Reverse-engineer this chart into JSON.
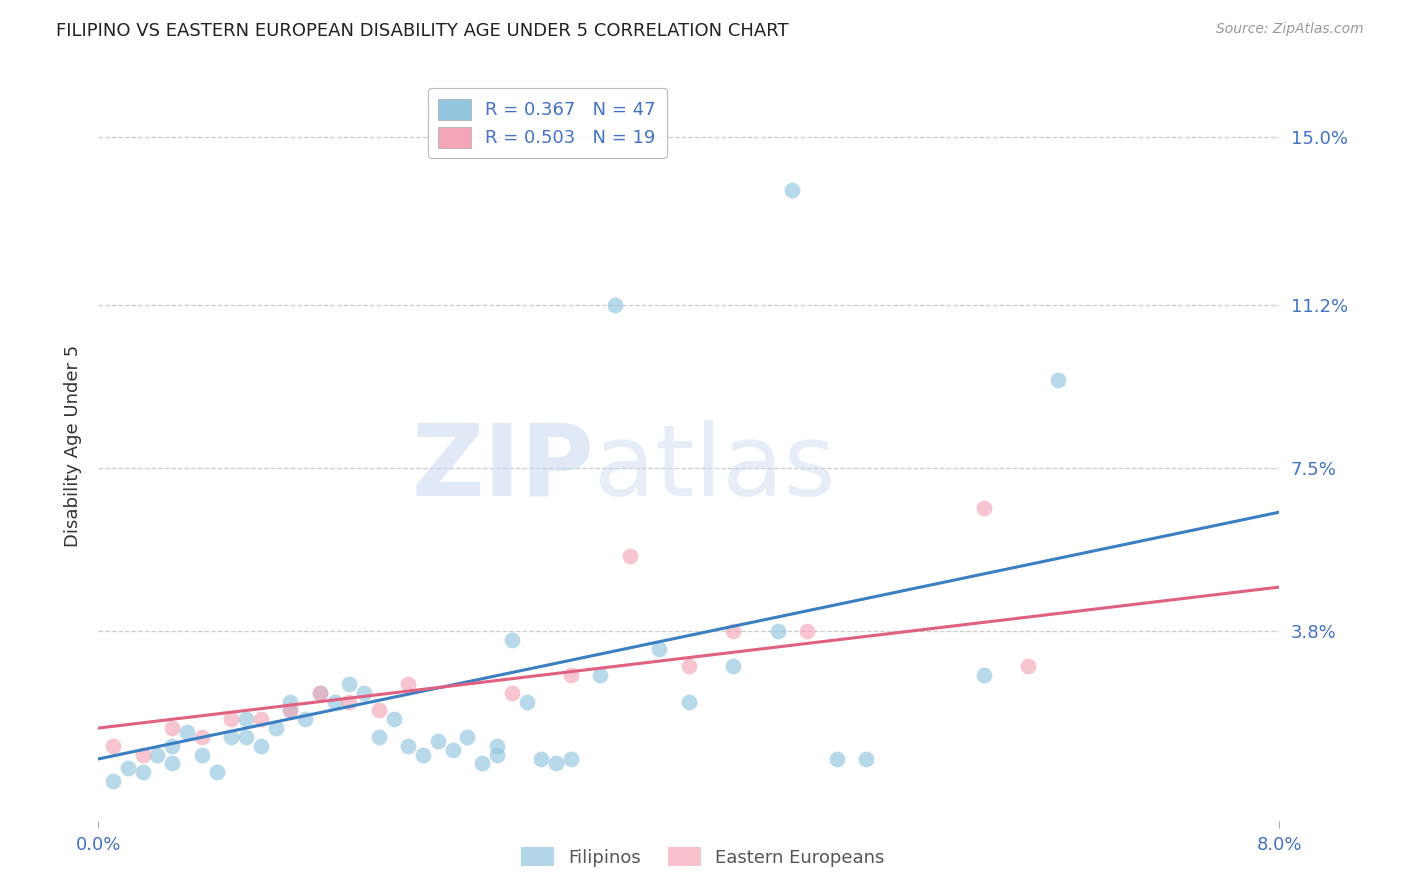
{
  "title": "FILIPINO VS EASTERN EUROPEAN DISABILITY AGE UNDER 5 CORRELATION CHART",
  "source": "Source: ZipAtlas.com",
  "ylabel": "Disability Age Under 5",
  "ytick_labels": [
    "15.0%",
    "11.2%",
    "7.5%",
    "3.8%"
  ],
  "ytick_values": [
    0.15,
    0.112,
    0.075,
    0.038
  ],
  "xlim": [
    0.0,
    0.08
  ],
  "ylim": [
    -0.005,
    0.165
  ],
  "watermark_zip": "ZIP",
  "watermark_atlas": "atlas",
  "legend_entries": [
    {
      "label": "R = 0.367   N = 47",
      "color": "#92c5de"
    },
    {
      "label": "R = 0.503   N = 19",
      "color": "#f4a6b8"
    }
  ],
  "filipinos_scatter": [
    [
      0.001,
      0.004
    ],
    [
      0.002,
      0.007
    ],
    [
      0.003,
      0.006
    ],
    [
      0.004,
      0.01
    ],
    [
      0.005,
      0.008
    ],
    [
      0.005,
      0.012
    ],
    [
      0.006,
      0.015
    ],
    [
      0.007,
      0.01
    ],
    [
      0.008,
      0.006
    ],
    [
      0.009,
      0.014
    ],
    [
      0.01,
      0.018
    ],
    [
      0.01,
      0.014
    ],
    [
      0.011,
      0.012
    ],
    [
      0.012,
      0.016
    ],
    [
      0.013,
      0.02
    ],
    [
      0.013,
      0.022
    ],
    [
      0.014,
      0.018
    ],
    [
      0.015,
      0.024
    ],
    [
      0.016,
      0.022
    ],
    [
      0.017,
      0.026
    ],
    [
      0.018,
      0.024
    ],
    [
      0.019,
      0.014
    ],
    [
      0.02,
      0.018
    ],
    [
      0.021,
      0.012
    ],
    [
      0.022,
      0.01
    ],
    [
      0.023,
      0.013
    ],
    [
      0.024,
      0.011
    ],
    [
      0.025,
      0.014
    ],
    [
      0.026,
      0.008
    ],
    [
      0.027,
      0.01
    ],
    [
      0.027,
      0.012
    ],
    [
      0.028,
      0.036
    ],
    [
      0.029,
      0.022
    ],
    [
      0.03,
      0.009
    ],
    [
      0.031,
      0.008
    ],
    [
      0.032,
      0.009
    ],
    [
      0.034,
      0.028
    ],
    [
      0.038,
      0.034
    ],
    [
      0.04,
      0.022
    ],
    [
      0.043,
      0.03
    ],
    [
      0.046,
      0.038
    ],
    [
      0.05,
      0.009
    ],
    [
      0.052,
      0.009
    ],
    [
      0.06,
      0.028
    ],
    [
      0.065,
      0.095
    ],
    [
      0.035,
      0.112
    ],
    [
      0.047,
      0.138
    ]
  ],
  "eastern_europeans_scatter": [
    [
      0.001,
      0.012
    ],
    [
      0.003,
      0.01
    ],
    [
      0.005,
      0.016
    ],
    [
      0.007,
      0.014
    ],
    [
      0.009,
      0.018
    ],
    [
      0.011,
      0.018
    ],
    [
      0.013,
      0.02
    ],
    [
      0.015,
      0.024
    ],
    [
      0.017,
      0.022
    ],
    [
      0.019,
      0.02
    ],
    [
      0.021,
      0.026
    ],
    [
      0.028,
      0.024
    ],
    [
      0.032,
      0.028
    ],
    [
      0.036,
      0.055
    ],
    [
      0.04,
      0.03
    ],
    [
      0.043,
      0.038
    ],
    [
      0.048,
      0.038
    ],
    [
      0.06,
      0.066
    ],
    [
      0.063,
      0.03
    ]
  ],
  "filipinos_line_x": [
    0.0,
    0.08
  ],
  "filipinos_line_y": [
    0.009,
    0.065
  ],
  "eastern_line_x": [
    0.0,
    0.08
  ],
  "eastern_line_y": [
    0.016,
    0.048
  ],
  "filipinos_scatter_color": "#92c5de",
  "eastern_scatter_color": "#f4a6b8",
  "filipinos_line_color": "#3a7fc1",
  "eastern_line_color": "#e06080",
  "bg_color": "#ffffff",
  "grid_color": "#cccccc",
  "title_color": "#222222",
  "tick_color": "#4472c4",
  "ylabel_color": "#333333"
}
